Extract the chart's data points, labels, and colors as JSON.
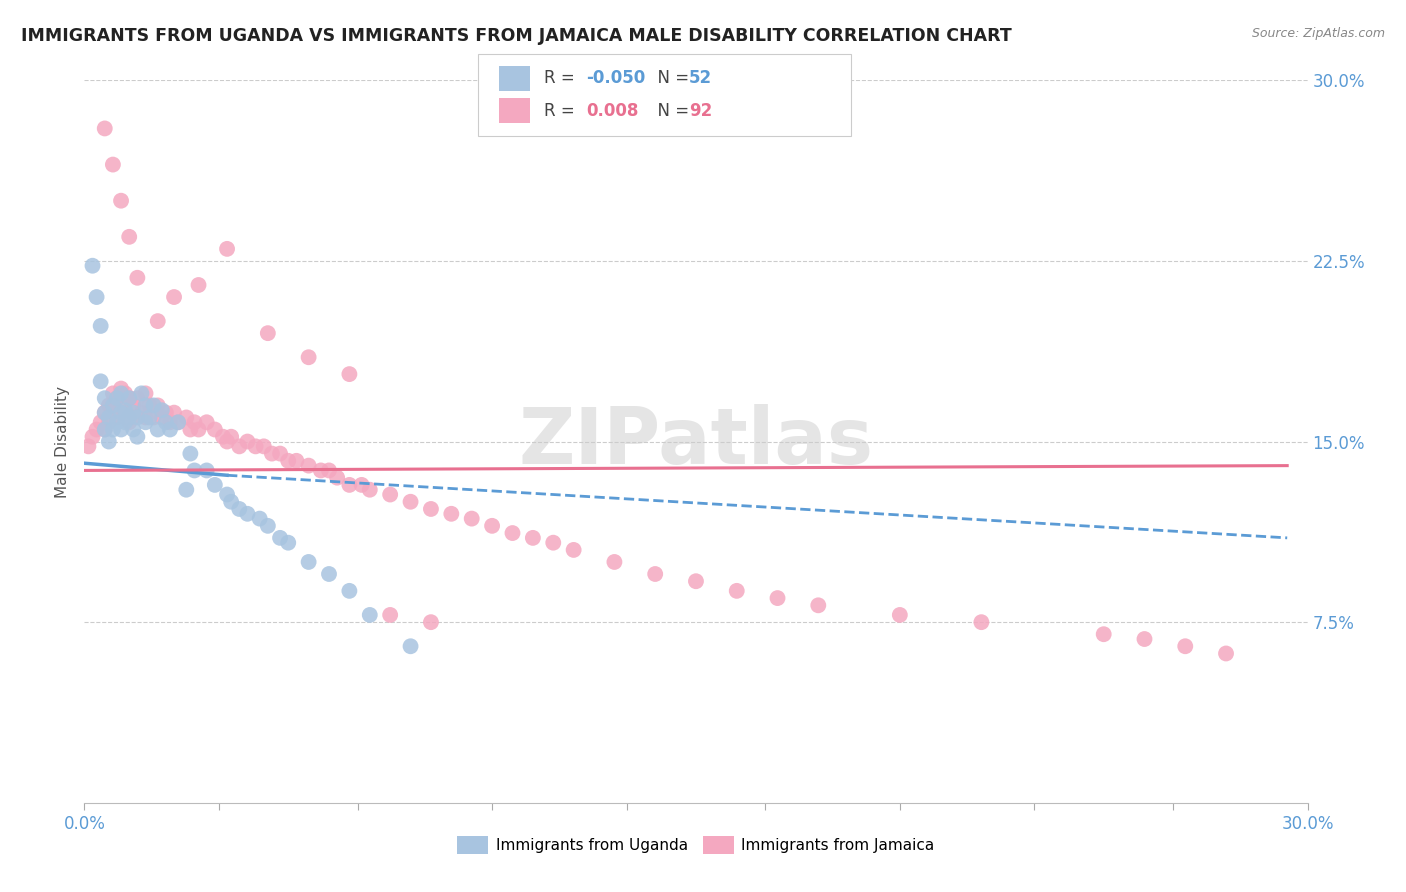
{
  "title": "IMMIGRANTS FROM UGANDA VS IMMIGRANTS FROM JAMAICA MALE DISABILITY CORRELATION CHART",
  "source": "Source: ZipAtlas.com",
  "ylabel": "Male Disability",
  "xlim": [
    0.0,
    0.3
  ],
  "ylim": [
    0.0,
    0.3
  ],
  "yticks": [
    0.075,
    0.15,
    0.225,
    0.3
  ],
  "ytick_labels": [
    "7.5%",
    "15.0%",
    "22.5%",
    "30.0%"
  ],
  "xtick_positions": [
    0.0,
    0.033,
    0.067,
    0.1,
    0.133,
    0.167,
    0.2,
    0.233,
    0.267,
    0.3
  ],
  "legend_R_uganda": "-0.050",
  "legend_N_uganda": "52",
  "legend_R_jamaica": "0.008",
  "legend_N_jamaica": "92",
  "color_uganda": "#a8c4e0",
  "color_jamaica": "#f4a8c0",
  "trendline_color_uganda": "#5b9bd5",
  "trendline_color_jamaica": "#e87090",
  "background_color": "#ffffff",
  "watermark": "ZIPatlas",
  "uganda_x": [
    0.002,
    0.003,
    0.004,
    0.004,
    0.005,
    0.005,
    0.005,
    0.006,
    0.006,
    0.007,
    0.007,
    0.008,
    0.008,
    0.009,
    0.009,
    0.009,
    0.01,
    0.01,
    0.011,
    0.011,
    0.012,
    0.012,
    0.013,
    0.013,
    0.014,
    0.015,
    0.015,
    0.016,
    0.017,
    0.018,
    0.019,
    0.02,
    0.021,
    0.023,
    0.025,
    0.026,
    0.027,
    0.03,
    0.032,
    0.035,
    0.036,
    0.038,
    0.04,
    0.043,
    0.045,
    0.048,
    0.05,
    0.055,
    0.06,
    0.065,
    0.07,
    0.08
  ],
  "uganda_y": [
    0.223,
    0.21,
    0.198,
    0.175,
    0.168,
    0.162,
    0.155,
    0.16,
    0.15,
    0.165,
    0.155,
    0.168,
    0.158,
    0.17,
    0.162,
    0.155,
    0.163,
    0.158,
    0.168,
    0.16,
    0.162,
    0.155,
    0.16,
    0.152,
    0.17,
    0.165,
    0.158,
    0.16,
    0.165,
    0.155,
    0.163,
    0.158,
    0.155,
    0.158,
    0.13,
    0.145,
    0.138,
    0.138,
    0.132,
    0.128,
    0.125,
    0.122,
    0.12,
    0.118,
    0.115,
    0.11,
    0.108,
    0.1,
    0.095,
    0.088,
    0.078,
    0.065
  ],
  "jamaica_x": [
    0.001,
    0.002,
    0.003,
    0.004,
    0.005,
    0.005,
    0.006,
    0.006,
    0.007,
    0.007,
    0.008,
    0.008,
    0.009,
    0.009,
    0.01,
    0.01,
    0.011,
    0.011,
    0.012,
    0.012,
    0.013,
    0.014,
    0.015,
    0.015,
    0.016,
    0.017,
    0.018,
    0.019,
    0.02,
    0.021,
    0.022,
    0.023,
    0.025,
    0.026,
    0.027,
    0.028,
    0.03,
    0.032,
    0.034,
    0.035,
    0.036,
    0.038,
    0.04,
    0.042,
    0.044,
    0.046,
    0.048,
    0.05,
    0.052,
    0.055,
    0.058,
    0.06,
    0.062,
    0.065,
    0.068,
    0.07,
    0.075,
    0.08,
    0.085,
    0.09,
    0.095,
    0.1,
    0.105,
    0.11,
    0.115,
    0.12,
    0.13,
    0.14,
    0.15,
    0.16,
    0.17,
    0.18,
    0.2,
    0.22,
    0.25,
    0.26,
    0.27,
    0.28,
    0.005,
    0.007,
    0.009,
    0.011,
    0.013,
    0.018,
    0.022,
    0.028,
    0.035,
    0.045,
    0.055,
    0.065,
    0.075,
    0.085
  ],
  "jamaica_y": [
    0.148,
    0.152,
    0.155,
    0.158,
    0.162,
    0.155,
    0.165,
    0.158,
    0.17,
    0.163,
    0.168,
    0.16,
    0.172,
    0.165,
    0.17,
    0.162,
    0.168,
    0.158,
    0.165,
    0.16,
    0.168,
    0.162,
    0.17,
    0.16,
    0.165,
    0.16,
    0.165,
    0.16,
    0.162,
    0.158,
    0.162,
    0.158,
    0.16,
    0.155,
    0.158,
    0.155,
    0.158,
    0.155,
    0.152,
    0.15,
    0.152,
    0.148,
    0.15,
    0.148,
    0.148,
    0.145,
    0.145,
    0.142,
    0.142,
    0.14,
    0.138,
    0.138,
    0.135,
    0.132,
    0.132,
    0.13,
    0.128,
    0.125,
    0.122,
    0.12,
    0.118,
    0.115,
    0.112,
    0.11,
    0.108,
    0.105,
    0.1,
    0.095,
    0.092,
    0.088,
    0.085,
    0.082,
    0.078,
    0.075,
    0.07,
    0.068,
    0.065,
    0.062,
    0.28,
    0.265,
    0.25,
    0.235,
    0.218,
    0.2,
    0.21,
    0.215,
    0.23,
    0.195,
    0.185,
    0.178,
    0.078,
    0.075
  ],
  "trendline_uganda_x0": 0.0,
  "trendline_uganda_x_solid_end": 0.035,
  "trendline_uganda_x1": 0.295,
  "trendline_uganda_y0": 0.141,
  "trendline_uganda_y_solid_end": 0.136,
  "trendline_uganda_y1": 0.11,
  "trendline_jamaica_x0": 0.0,
  "trendline_jamaica_x1": 0.295,
  "trendline_jamaica_y0": 0.138,
  "trendline_jamaica_y1": 0.14
}
